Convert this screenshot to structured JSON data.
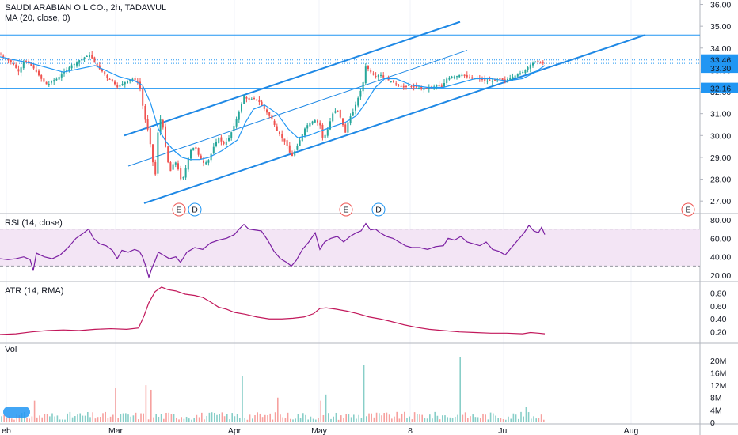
{
  "header": {
    "symbol_line": "SAUDI ARABIAN OIL CO., 2h, TADAWUL",
    "ma_label": "MA (20, close, 0)"
  },
  "panes": {
    "rsi_label": "RSI (14, close)",
    "atr_label": "ATR (14, RMA)",
    "vol_label": "Vol"
  },
  "colors": {
    "up": "#26a69a",
    "down": "#ef5350",
    "ma": "#2196f3",
    "channel": "#1e88e5",
    "rsi": "#7b1fa2",
    "atr": "#c2185b",
    "rsi_band": "#f3e5f5",
    "price_tag": "#2196f3"
  },
  "events": [
    {
      "label": "E",
      "color": "#ef5350"
    },
    {
      "label": "D",
      "color": "#2196f3"
    },
    {
      "label": "E",
      "color": "#ef5350"
    },
    {
      "label": "D",
      "color": "#2196f3"
    },
    {
      "label": "E",
      "color": "#ef5350"
    }
  ],
  "x_axis_labels": [
    "eb",
    "Mar",
    "Apr",
    "May",
    "8",
    "Jul",
    "Aug"
  ],
  "price_badges": [
    "33.46",
    "33.30",
    "32.16"
  ],
  "chart_data": [
    {
      "type": "candlestick",
      "title": "SAUDI ARABIAN OIL CO., 2h, TADAWUL",
      "ylim": [
        26.5,
        36.2
      ],
      "y_ticks": [
        "36.00",
        "35.00",
        "34.00",
        "33.00",
        "32.00",
        "31.00",
        "30.00",
        "29.00",
        "28.00",
        "27.00"
      ],
      "levels": [
        34.6,
        33.46,
        33.3,
        32.16
      ],
      "close_path": [
        [
          0,
          33.7
        ],
        [
          6,
          33.55
        ],
        [
          12,
          33.4
        ],
        [
          18,
          33.2
        ],
        [
          24,
          32.9
        ],
        [
          30,
          33.4
        ],
        [
          36,
          33.3
        ],
        [
          42,
          33.1
        ],
        [
          48,
          32.8
        ],
        [
          54,
          32.5
        ],
        [
          60,
          32.3
        ],
        [
          66,
          32.5
        ],
        [
          72,
          32.6
        ],
        [
          78,
          32.8
        ],
        [
          84,
          33.0
        ],
        [
          90,
          33.2
        ],
        [
          96,
          33.3
        ],
        [
          102,
          33.5
        ],
        [
          108,
          33.6
        ],
        [
          114,
          33.7
        ],
        [
          118,
          33.4
        ],
        [
          124,
          33.1
        ],
        [
          130,
          32.9
        ],
        [
          136,
          32.6
        ],
        [
          142,
          32.5
        ],
        [
          148,
          32.2
        ],
        [
          152,
          32.3
        ],
        [
          160,
          32.5
        ],
        [
          168,
          32.6
        ],
        [
          176,
          32.4
        ],
        [
          180,
          31.4
        ],
        [
          184,
          30.6
        ],
        [
          188,
          30.1
        ],
        [
          192,
          29.0
        ],
        [
          196,
          28.1
        ],
        [
          200,
          30.5
        ],
        [
          204,
          30.9
        ],
        [
          208,
          29.7
        ],
        [
          212,
          28.8
        ],
        [
          216,
          28.3
        ],
        [
          220,
          28.9
        ],
        [
          224,
          28.6
        ],
        [
          228,
          28.0
        ],
        [
          232,
          28.1
        ],
        [
          236,
          28.7
        ],
        [
          240,
          29.3
        ],
        [
          246,
          29.5
        ],
        [
          252,
          29.0
        ],
        [
          258,
          28.7
        ],
        [
          264,
          28.9
        ],
        [
          270,
          29.5
        ],
        [
          276,
          29.9
        ],
        [
          282,
          29.6
        ],
        [
          288,
          29.8
        ],
        [
          294,
          30.3
        ],
        [
          300,
          30.9
        ],
        [
          304,
          31.3
        ],
        [
          308,
          31.8
        ],
        [
          314,
          31.6
        ],
        [
          320,
          31.7
        ],
        [
          326,
          31.6
        ],
        [
          332,
          31.3
        ],
        [
          338,
          31.0
        ],
        [
          344,
          30.7
        ],
        [
          350,
          30.2
        ],
        [
          356,
          29.9
        ],
        [
          362,
          29.6
        ],
        [
          368,
          29.0
        ],
        [
          374,
          29.4
        ],
        [
          380,
          29.9
        ],
        [
          386,
          30.4
        ],
        [
          392,
          30.6
        ],
        [
          398,
          30.7
        ],
        [
          404,
          30.5
        ],
        [
          408,
          29.8
        ],
        [
          414,
          30.3
        ],
        [
          420,
          31.0
        ],
        [
          426,
          31.2
        ],
        [
          432,
          30.6
        ],
        [
          436,
          30.1
        ],
        [
          440,
          30.7
        ],
        [
          446,
          31.1
        ],
        [
          452,
          31.7
        ],
        [
          458,
          32.3
        ],
        [
          462,
          33.2
        ],
        [
          468,
          32.9
        ],
        [
          474,
          32.7
        ],
        [
          480,
          32.8
        ],
        [
          486,
          32.6
        ],
        [
          492,
          32.5
        ],
        [
          498,
          32.4
        ],
        [
          504,
          32.3
        ],
        [
          510,
          32.2
        ],
        [
          516,
          32.3
        ],
        [
          522,
          32.2
        ],
        [
          528,
          32.2
        ],
        [
          534,
          32.1
        ],
        [
          540,
          32.2
        ],
        [
          546,
          32.2
        ],
        [
          552,
          32.3
        ],
        [
          558,
          32.2
        ],
        [
          564,
          32.6
        ],
        [
          570,
          32.7
        ],
        [
          576,
          32.7
        ],
        [
          582,
          32.8
        ],
        [
          588,
          32.7
        ],
        [
          594,
          32.6
        ],
        [
          600,
          32.6
        ],
        [
          606,
          32.6
        ],
        [
          612,
          32.5
        ],
        [
          618,
          32.5
        ],
        [
          624,
          32.5
        ],
        [
          630,
          32.6
        ],
        [
          636,
          32.5
        ],
        [
          642,
          32.6
        ],
        [
          648,
          32.7
        ],
        [
          654,
          32.8
        ],
        [
          660,
          32.9
        ],
        [
          666,
          33.1
        ],
        [
          672,
          33.3
        ],
        [
          678,
          33.4
        ],
        [
          684,
          33.3
        ],
        [
          688,
          33.3
        ]
      ],
      "ma_path": [
        [
          0,
          33.6
        ],
        [
          40,
          33.3
        ],
        [
          80,
          32.9
        ],
        [
          120,
          33.2
        ],
        [
          150,
          32.7
        ],
        [
          170,
          32.5
        ],
        [
          180,
          32.3
        ],
        [
          190,
          31.5
        ],
        [
          200,
          30.3
        ],
        [
          210,
          29.7
        ],
        [
          220,
          29.3
        ],
        [
          230,
          29.0
        ],
        [
          240,
          28.9
        ],
        [
          252,
          28.9
        ],
        [
          264,
          29.0
        ],
        [
          280,
          29.3
        ],
        [
          300,
          29.8
        ],
        [
          310,
          30.6
        ],
        [
          320,
          31.2
        ],
        [
          334,
          31.4
        ],
        [
          350,
          31.0
        ],
        [
          364,
          30.3
        ],
        [
          376,
          29.9
        ],
        [
          390,
          30.0
        ],
        [
          404,
          30.2
        ],
        [
          420,
          30.4
        ],
        [
          436,
          30.6
        ],
        [
          450,
          30.9
        ],
        [
          462,
          31.5
        ],
        [
          474,
          32.2
        ],
        [
          486,
          32.6
        ],
        [
          500,
          32.6
        ],
        [
          520,
          32.3
        ],
        [
          540,
          32.2
        ],
        [
          560,
          32.2
        ],
        [
          580,
          32.4
        ],
        [
          600,
          32.6
        ],
        [
          620,
          32.6
        ],
        [
          640,
          32.5
        ],
        [
          660,
          32.6
        ],
        [
          676,
          32.9
        ],
        [
          688,
          33.2
        ]
      ],
      "channel_lines": [
        {
          "name": "upper",
          "from": [
            157,
            30.0
          ],
          "to": [
            581,
            35.2
          ]
        },
        {
          "name": "lower",
          "from": [
            182,
            26.9
          ],
          "to": [
            815,
            34.6
          ]
        },
        {
          "name": "mid",
          "from": [
            162,
            28.6
          ],
          "to": [
            590,
            33.9
          ]
        }
      ]
    },
    {
      "type": "line",
      "title": "RSI (14, close)",
      "ylim": [
        15,
        85
      ],
      "y_ticks": [
        "80.00",
        "60.00",
        "40.00",
        "20.00"
      ],
      "band": [
        30,
        70
      ],
      "points": [
        [
          0,
          38
        ],
        [
          10,
          37
        ],
        [
          20,
          38
        ],
        [
          30,
          40
        ],
        [
          38,
          37
        ],
        [
          42,
          25
        ],
        [
          46,
          44
        ],
        [
          56,
          40
        ],
        [
          66,
          38
        ],
        [
          76,
          42
        ],
        [
          86,
          50
        ],
        [
          96,
          60
        ],
        [
          106,
          66
        ],
        [
          112,
          70
        ],
        [
          118,
          60
        ],
        [
          126,
          54
        ],
        [
          134,
          52
        ],
        [
          142,
          47
        ],
        [
          148,
          38
        ],
        [
          154,
          47
        ],
        [
          162,
          45
        ],
        [
          170,
          48
        ],
        [
          176,
          46
        ],
        [
          180,
          40
        ],
        [
          184,
          30
        ],
        [
          188,
          18
        ],
        [
          192,
          28
        ],
        [
          196,
          36
        ],
        [
          200,
          45
        ],
        [
          206,
          42
        ],
        [
          214,
          38
        ],
        [
          222,
          40
        ],
        [
          228,
          34
        ],
        [
          236,
          45
        ],
        [
          246,
          50
        ],
        [
          256,
          48
        ],
        [
          266,
          55
        ],
        [
          276,
          58
        ],
        [
          286,
          60
        ],
        [
          296,
          64
        ],
        [
          302,
          70
        ],
        [
          308,
          75
        ],
        [
          314,
          70
        ],
        [
          322,
          69
        ],
        [
          330,
          68
        ],
        [
          338,
          58
        ],
        [
          346,
          46
        ],
        [
          354,
          38
        ],
        [
          362,
          34
        ],
        [
          368,
          30
        ],
        [
          374,
          36
        ],
        [
          382,
          48
        ],
        [
          390,
          56
        ],
        [
          398,
          66
        ],
        [
          404,
          48
        ],
        [
          410,
          56
        ],
        [
          418,
          60
        ],
        [
          426,
          62
        ],
        [
          434,
          56
        ],
        [
          442,
          62
        ],
        [
          450,
          66
        ],
        [
          456,
          68
        ],
        [
          462,
          76
        ],
        [
          468,
          69
        ],
        [
          474,
          70
        ],
        [
          480,
          66
        ],
        [
          488,
          62
        ],
        [
          496,
          60
        ],
        [
          504,
          56
        ],
        [
          512,
          52
        ],
        [
          520,
          50
        ],
        [
          530,
          50
        ],
        [
          540,
          48
        ],
        [
          550,
          51
        ],
        [
          560,
          52
        ],
        [
          566,
          60
        ],
        [
          574,
          58
        ],
        [
          582,
          62
        ],
        [
          590,
          56
        ],
        [
          598,
          54
        ],
        [
          606,
          52
        ],
        [
          614,
          56
        ],
        [
          622,
          48
        ],
        [
          630,
          46
        ],
        [
          638,
          42
        ],
        [
          646,
          50
        ],
        [
          654,
          58
        ],
        [
          662,
          66
        ],
        [
          668,
          74
        ],
        [
          674,
          68
        ],
        [
          680,
          66
        ],
        [
          684,
          72
        ],
        [
          688,
          64
        ]
      ]
    },
    {
      "type": "line",
      "title": "ATR (14, RMA)",
      "ylim": [
        0.05,
        0.95
      ],
      "y_ticks": [
        "0.80",
        "0.60",
        "0.40",
        "0.20"
      ],
      "points": [
        [
          0,
          0.16
        ],
        [
          20,
          0.17
        ],
        [
          40,
          0.2
        ],
        [
          60,
          0.22
        ],
        [
          80,
          0.23
        ],
        [
          100,
          0.22
        ],
        [
          120,
          0.24
        ],
        [
          140,
          0.25
        ],
        [
          160,
          0.24
        ],
        [
          175,
          0.26
        ],
        [
          182,
          0.45
        ],
        [
          188,
          0.65
        ],
        [
          196,
          0.82
        ],
        [
          204,
          0.89
        ],
        [
          212,
          0.85
        ],
        [
          222,
          0.83
        ],
        [
          234,
          0.78
        ],
        [
          246,
          0.76
        ],
        [
          256,
          0.73
        ],
        [
          266,
          0.66
        ],
        [
          276,
          0.58
        ],
        [
          286,
          0.55
        ],
        [
          296,
          0.5
        ],
        [
          310,
          0.47
        ],
        [
          324,
          0.43
        ],
        [
          340,
          0.4
        ],
        [
          356,
          0.4
        ],
        [
          370,
          0.41
        ],
        [
          384,
          0.43
        ],
        [
          396,
          0.48
        ],
        [
          404,
          0.56
        ],
        [
          412,
          0.57
        ],
        [
          424,
          0.55
        ],
        [
          438,
          0.52
        ],
        [
          452,
          0.48
        ],
        [
          466,
          0.43
        ],
        [
          480,
          0.4
        ],
        [
          494,
          0.36
        ],
        [
          510,
          0.31
        ],
        [
          526,
          0.27
        ],
        [
          542,
          0.24
        ],
        [
          560,
          0.22
        ],
        [
          580,
          0.2
        ],
        [
          600,
          0.19
        ],
        [
          620,
          0.18
        ],
        [
          640,
          0.18
        ],
        [
          660,
          0.17
        ],
        [
          670,
          0.19
        ],
        [
          680,
          0.18
        ],
        [
          688,
          0.17
        ]
      ]
    },
    {
      "type": "bar",
      "title": "Vol",
      "ylim": [
        0,
        21.5
      ],
      "y_ticks": [
        "20M",
        "16M",
        "12M",
        "8M",
        "4M",
        "0"
      ],
      "spikes": [
        {
          "x": 461,
          "value": 18.5
        },
        {
          "x": 580,
          "value": 21.0
        },
        {
          "x": 307,
          "value": 15.0
        },
        {
          "x": 185,
          "value": 12.0
        },
        {
          "x": 192,
          "value": 10.5
        },
        {
          "x": 145,
          "value": 11.0
        },
        {
          "x": 412,
          "value": 9.0
        },
        {
          "x": 405,
          "value": 7.0
        },
        {
          "x": 350,
          "value": 8.0
        },
        {
          "x": 45,
          "value": 7.0
        },
        {
          "x": 664,
          "value": 5.0
        }
      ],
      "base_level": 2.0
    }
  ]
}
